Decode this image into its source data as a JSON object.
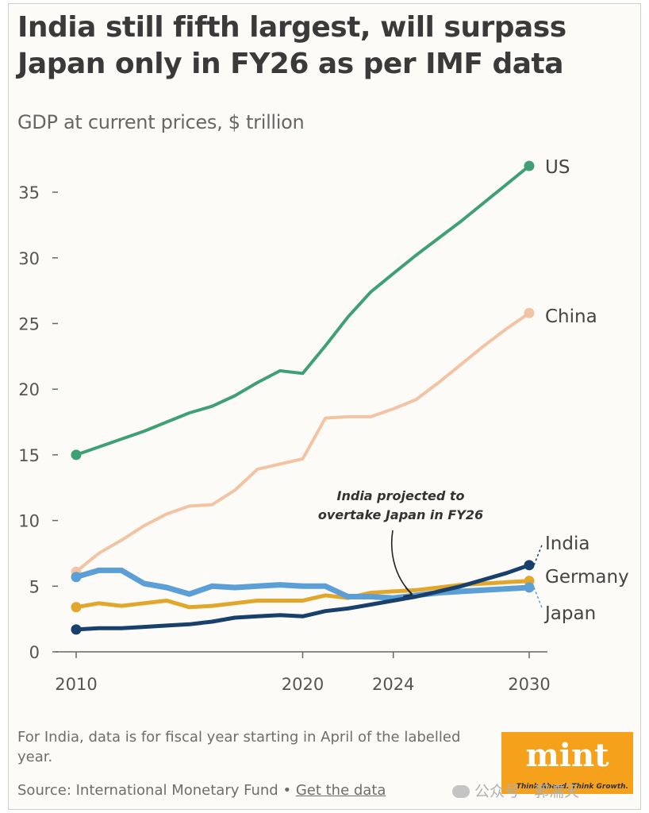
{
  "header": {
    "title": "India still fifth largest, will surpass Japan only in FY26 as per IMF data",
    "subtitle": "GDP at current prices, $ trillion"
  },
  "chart_data": {
    "type": "line",
    "title": "India still fifth largest, will surpass Japan only in FY26 as per IMF data",
    "subtitle": "GDP at current prices, $ trillion",
    "xlabel": "",
    "ylabel": "GDP at current prices, $ trillion",
    "xlim": [
      2010,
      2030
    ],
    "ylim": [
      0,
      37
    ],
    "x_ticks": [
      2010,
      2020,
      2024,
      2030
    ],
    "y_ticks": [
      0,
      5,
      10,
      15,
      20,
      25,
      30,
      35
    ],
    "grid": false,
    "x": [
      2010,
      2011,
      2012,
      2013,
      2014,
      2015,
      2016,
      2017,
      2018,
      2019,
      2020,
      2021,
      2022,
      2023,
      2024,
      2025,
      2026,
      2027,
      2028,
      2029,
      2030
    ],
    "series": [
      {
        "name": "US",
        "color": "#3f9f75",
        "width": 4,
        "values": [
          15.0,
          15.6,
          16.2,
          16.8,
          17.5,
          18.2,
          18.7,
          19.5,
          20.5,
          21.4,
          21.2,
          23.3,
          25.5,
          27.4,
          28.8,
          30.2,
          31.5,
          32.8,
          34.2,
          35.6,
          37.0
        ]
      },
      {
        "name": "China",
        "color": "#f2c4a3",
        "width": 4,
        "values": [
          6.1,
          7.5,
          8.5,
          9.6,
          10.5,
          11.1,
          11.2,
          12.3,
          13.9,
          14.3,
          14.7,
          17.8,
          17.9,
          17.9,
          18.5,
          19.2,
          20.5,
          21.9,
          23.3,
          24.6,
          25.8
        ]
      },
      {
        "name": "Germany",
        "color": "#e0a72a",
        "width": 5,
        "values": [
          3.4,
          3.7,
          3.5,
          3.7,
          3.9,
          3.4,
          3.5,
          3.7,
          3.9,
          3.9,
          3.9,
          4.3,
          4.1,
          4.5,
          4.6,
          4.7,
          4.9,
          5.1,
          5.2,
          5.3,
          5.4
        ]
      },
      {
        "name": "Japan",
        "color": "#5b9fd6",
        "width": 7,
        "values": [
          5.7,
          6.2,
          6.2,
          5.2,
          4.9,
          4.4,
          5.0,
          4.9,
          5.0,
          5.1,
          5.0,
          5.0,
          4.2,
          4.2,
          4.1,
          4.3,
          4.5,
          4.6,
          4.7,
          4.8,
          4.9
        ]
      },
      {
        "name": "India",
        "color": "#17406d",
        "width": 5,
        "values": [
          1.7,
          1.8,
          1.8,
          1.9,
          2.0,
          2.1,
          2.3,
          2.6,
          2.7,
          2.8,
          2.7,
          3.1,
          3.3,
          3.6,
          3.9,
          4.2,
          4.6,
          5.0,
          5.5,
          6.0,
          6.6
        ]
      }
    ],
    "label_order": [
      "US",
      "China",
      "India",
      "Germany",
      "Japan"
    ],
    "annotation": {
      "lines": [
        "India projected to",
        "overtake Japan in FY26"
      ],
      "points_to_x": 2025
    }
  },
  "footer": {
    "note": "For India, data is for fiscal year starting in April of the labelled year.",
    "source": "Source: International Monetary Fund",
    "separator": "•",
    "link": "Get the data"
  },
  "logo": {
    "word": "mint",
    "tagline": "Think Ahead. Think Growth.",
    "color": "#f5a11c"
  },
  "watermark": {
    "text": "公众号 · 郭濡天"
  }
}
